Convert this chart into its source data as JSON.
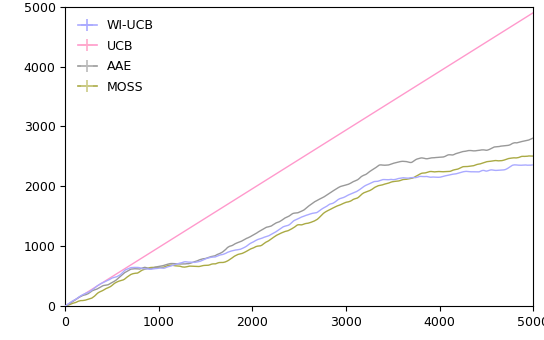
{
  "title": "",
  "xlabel": "",
  "ylabel": "",
  "xlim": [
    0,
    5000
  ],
  "ylim": [
    0,
    5000
  ],
  "yticks": [
    0,
    1000,
    2000,
    3000,
    4000,
    5000
  ],
  "xticks": [
    0,
    1000,
    2000,
    3000,
    4000,
    5000
  ],
  "legend_entries": [
    "WI-UCB",
    "UCB",
    "AAE",
    "MOSS"
  ],
  "line_colors": {
    "WI-UCB": "#aaaaff",
    "UCB": "#ff99cc",
    "AAE": "#999999",
    "MOSS": "#aaaa44"
  },
  "legend_marker_colors": {
    "WI-UCB": "#aaaaff",
    "UCB": "#ffaacc",
    "AAE": "#bbbbbb",
    "MOSS": "#cccc88"
  },
  "line_widths": {
    "WI-UCB": 1.0,
    "UCB": 1.0,
    "AAE": 1.0,
    "MOSS": 1.0
  },
  "n_steps": 5000,
  "background_color": "#ffffff",
  "figsize": [
    5.44,
    3.4
  ],
  "dpi": 100
}
